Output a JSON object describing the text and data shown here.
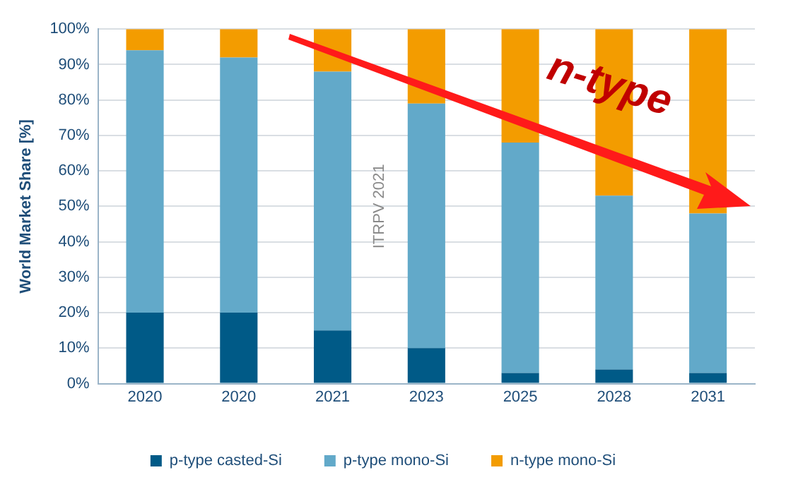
{
  "chart_data": {
    "type": "bar",
    "stacked": true,
    "ylabel": "World Market Share [%]",
    "categories": [
      "2020",
      "2020",
      "2021",
      "2023",
      "2025",
      "2028",
      "2031"
    ],
    "series": [
      {
        "name": "p-type casted-Si",
        "color": "#005a87",
        "values": [
          20,
          20,
          15,
          10,
          3,
          4,
          3
        ]
      },
      {
        "name": "p-type mono-Si",
        "color": "#62a9c9",
        "values": [
          74,
          72,
          73,
          69,
          65,
          49,
          45
        ]
      },
      {
        "name": "n-type mono-Si",
        "color": "#f39c00",
        "values": [
          6,
          8,
          12,
          21,
          32,
          47,
          52
        ]
      }
    ],
    "ylim": [
      0,
      100
    ],
    "yticks": [
      {
        "value": 0,
        "label": "0%"
      },
      {
        "value": 10,
        "label": "10%"
      },
      {
        "value": 20,
        "label": "20%"
      },
      {
        "value": 30,
        "label": "30%"
      },
      {
        "value": 40,
        "label": "40%"
      },
      {
        "value": 50,
        "label": "50%"
      },
      {
        "value": 60,
        "label": "60%"
      },
      {
        "value": 70,
        "label": "70%"
      },
      {
        "value": 80,
        "label": "80%"
      },
      {
        "value": 90,
        "label": "90%"
      },
      {
        "value": 100,
        "label": "100%"
      }
    ],
    "grid": "y",
    "legend": "bottom",
    "annotations": [
      "ITRPV 2021",
      "n-type"
    ]
  }
}
